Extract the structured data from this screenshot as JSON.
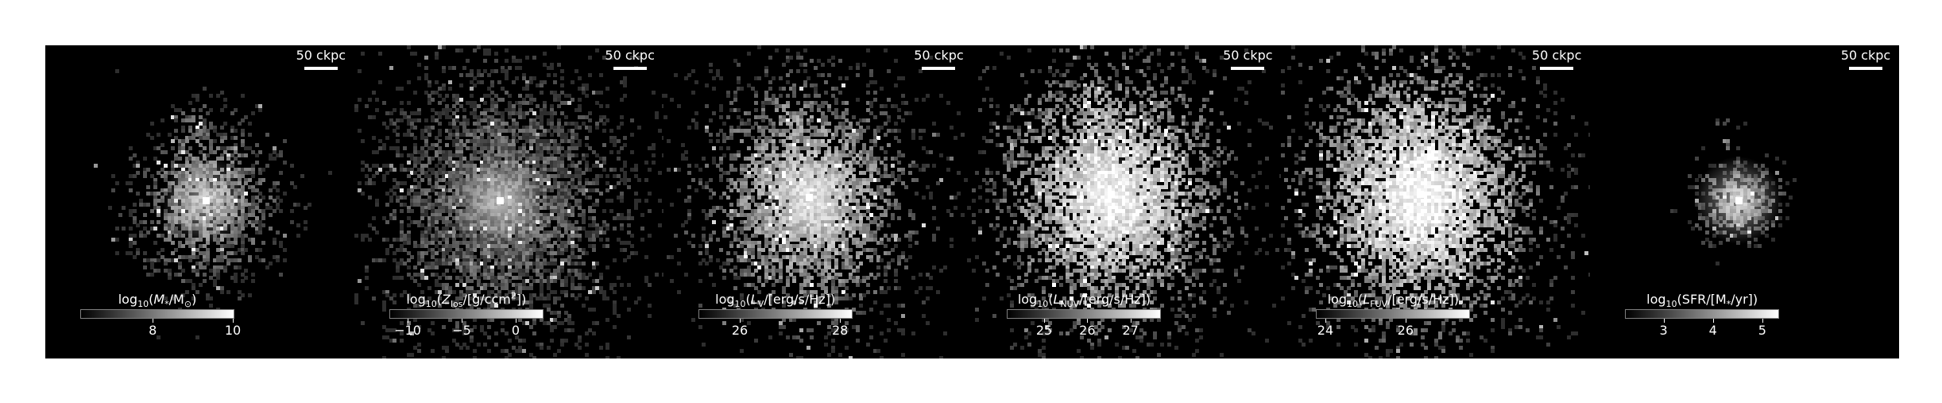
{
  "scalebar_label": "50 ckpc",
  "panels": [
    {
      "id": "stellar-mass",
      "cbar": {
        "prefix": "log",
        "base": "10",
        "open": "(",
        "sym": "M",
        "sub": "*",
        "mid": "/M",
        "sub2": "⊙",
        "sup": "",
        "close": ")"
      },
      "ticks": [
        {
          "label": "8",
          "pos": 0.47
        },
        {
          "label": "10",
          "pos": 0.99
        }
      ]
    },
    {
      "id": "metallicity",
      "cbar": {
        "prefix": "log",
        "base": "10",
        "open": "(",
        "sym": "Z",
        "sub": "los",
        "mid": "/[g/ccm",
        "sub2": "",
        "sup": "2",
        "close": "])"
      },
      "ticks": [
        {
          "label": "−10",
          "pos": 0.12
        },
        {
          "label": "−5",
          "pos": 0.47
        },
        {
          "label": "0",
          "pos": 0.82
        }
      ]
    },
    {
      "id": "v-band",
      "cbar": {
        "prefix": "log",
        "base": "10",
        "open": "(",
        "sym": "L",
        "sub": "V",
        "mid": "/[erg/s/Hz])",
        "sub2": "",
        "sup": "",
        "close": ""
      },
      "ticks": [
        {
          "label": "26",
          "pos": 0.27
        },
        {
          "label": "28",
          "pos": 0.92
        }
      ]
    },
    {
      "id": "nuv-band",
      "cbar": {
        "prefix": "log",
        "base": "10",
        "open": "(",
        "sym": "L",
        "sub": "NUV",
        "mid": "/[erg/s/Hz])",
        "sub2": "",
        "sup": "",
        "close": ""
      },
      "ticks": [
        {
          "label": "25",
          "pos": 0.24
        },
        {
          "label": "26",
          "pos": 0.52
        },
        {
          "label": "27",
          "pos": 0.8
        }
      ]
    },
    {
      "id": "fuv-band",
      "cbar": {
        "prefix": "log",
        "base": "10",
        "open": "(",
        "sym": "L",
        "sub": "FUV",
        "mid": "/[erg/s/Hz])",
        "sub2": "",
        "sup": "",
        "close": ""
      },
      "ticks": [
        {
          "label": "24",
          "pos": 0.06
        },
        {
          "label": "26",
          "pos": 0.58
        }
      ]
    },
    {
      "id": "sfr",
      "cbar": {
        "prefix": "log",
        "base": "10",
        "open": "(SFR/[M",
        "sym": "",
        "sub": "*",
        "mid": "/yr])",
        "sub2": "",
        "sup": "",
        "close": ""
      },
      "ticks": [
        {
          "label": "3",
          "pos": 0.25
        },
        {
          "label": "4",
          "pos": 0.57
        },
        {
          "label": "5",
          "pos": 0.89
        }
      ]
    }
  ]
}
